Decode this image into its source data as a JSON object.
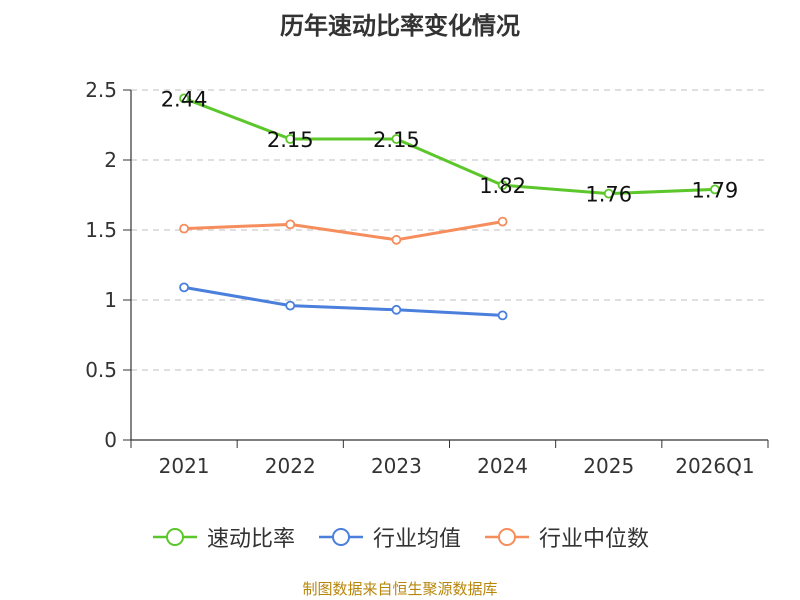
{
  "chart_data": {
    "type": "line",
    "title": "历年速动比率变化情况",
    "categories": [
      "2021",
      "2022",
      "2023",
      "2024",
      "2025",
      "2026Q1"
    ],
    "ylim": [
      0,
      2.5
    ],
    "yticks": [
      "0",
      "0.5",
      "1",
      "1.5",
      "2",
      "2.5"
    ],
    "grid": true,
    "legend_position": "bottom",
    "series": [
      {
        "name": "速动比率",
        "color": "#5cc72b",
        "values": [
          2.44,
          2.15,
          2.15,
          1.82,
          1.76,
          1.79
        ],
        "labels": [
          "2.44",
          "2.15",
          "2.15",
          "1.82",
          "1.76",
          "1.79"
        ]
      },
      {
        "name": "行业均值",
        "color": "#4a7fdc",
        "values": [
          1.09,
          0.96,
          0.93,
          0.89,
          null,
          null
        ]
      },
      {
        "name": "行业中位数",
        "color": "#f58d5c",
        "values": [
          1.51,
          1.54,
          1.43,
          1.56,
          null,
          null
        ]
      }
    ]
  },
  "source": "制图数据来自恒生聚源数据库"
}
